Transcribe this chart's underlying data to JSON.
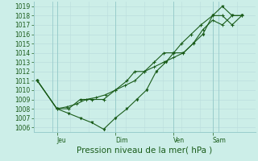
{
  "title": "Pression niveau de la mer( hPa )",
  "ylabel_ticks": [
    1006,
    1007,
    1008,
    1009,
    1010,
    1011,
    1012,
    1013,
    1014,
    1015,
    1016,
    1017,
    1018,
    1019
  ],
  "ylim": [
    1005.5,
    1019.5
  ],
  "background_color": "#cceee8",
  "grid_major_color": "#99cccc",
  "grid_minor_color": "#bbdddd",
  "line_color": "#1a5c1a",
  "x_tick_labels": [
    "Jeu",
    "Dim",
    "Ven",
    "Sam"
  ],
  "x_tick_positions": [
    1,
    4,
    7,
    9
  ],
  "x_minor_ticks": 12,
  "xlim": [
    -0.2,
    11.2
  ],
  "series1_x": [
    0,
    1,
    1.6,
    2.2,
    2.8,
    3.4,
    4,
    4.6,
    5.0,
    5.5,
    6.0,
    6.5,
    7.0,
    7.4,
    7.9,
    8.4,
    9,
    9.5,
    10.0,
    10.5
  ],
  "series1_y": [
    1011,
    1008,
    1008,
    1009,
    1009,
    1009,
    1010,
    1011,
    1012,
    1012,
    1013,
    1014,
    1014,
    1015,
    1016,
    1017,
    1018,
    1018,
    1017,
    1018
  ],
  "series2_x": [
    0,
    1,
    1.6,
    2.2,
    2.8,
    3.4,
    4,
    4.6,
    5.1,
    5.6,
    6.1,
    6.6,
    7.0,
    7.5,
    8.0,
    8.5,
    9,
    9.5,
    10.0,
    10.5
  ],
  "series2_y": [
    1011,
    1008,
    1007.5,
    1007,
    1006.5,
    1005.8,
    1007,
    1008,
    1009,
    1010,
    1012,
    1013,
    1014,
    1014,
    1015,
    1016,
    1018,
    1019,
    1018,
    1018
  ],
  "series3_x": [
    0,
    1,
    1.5,
    2.0,
    2.5,
    3.0,
    3.5,
    4,
    4.5,
    5.0,
    5.5,
    6.0,
    6.5,
    7.0,
    7.5,
    8.0,
    8.5,
    9,
    9.5,
    10.0,
    10.5
  ],
  "series3_y": [
    1011,
    1008,
    1008.2,
    1008.5,
    1009,
    1009.2,
    1009.5,
    1010,
    1010.5,
    1011,
    1012,
    1012.5,
    1013,
    1013.5,
    1014,
    1015,
    1016.5,
    1017.5,
    1017,
    1018,
    1018
  ],
  "fontsize_ticks": 5.5,
  "fontsize_xlabel": 7.5
}
